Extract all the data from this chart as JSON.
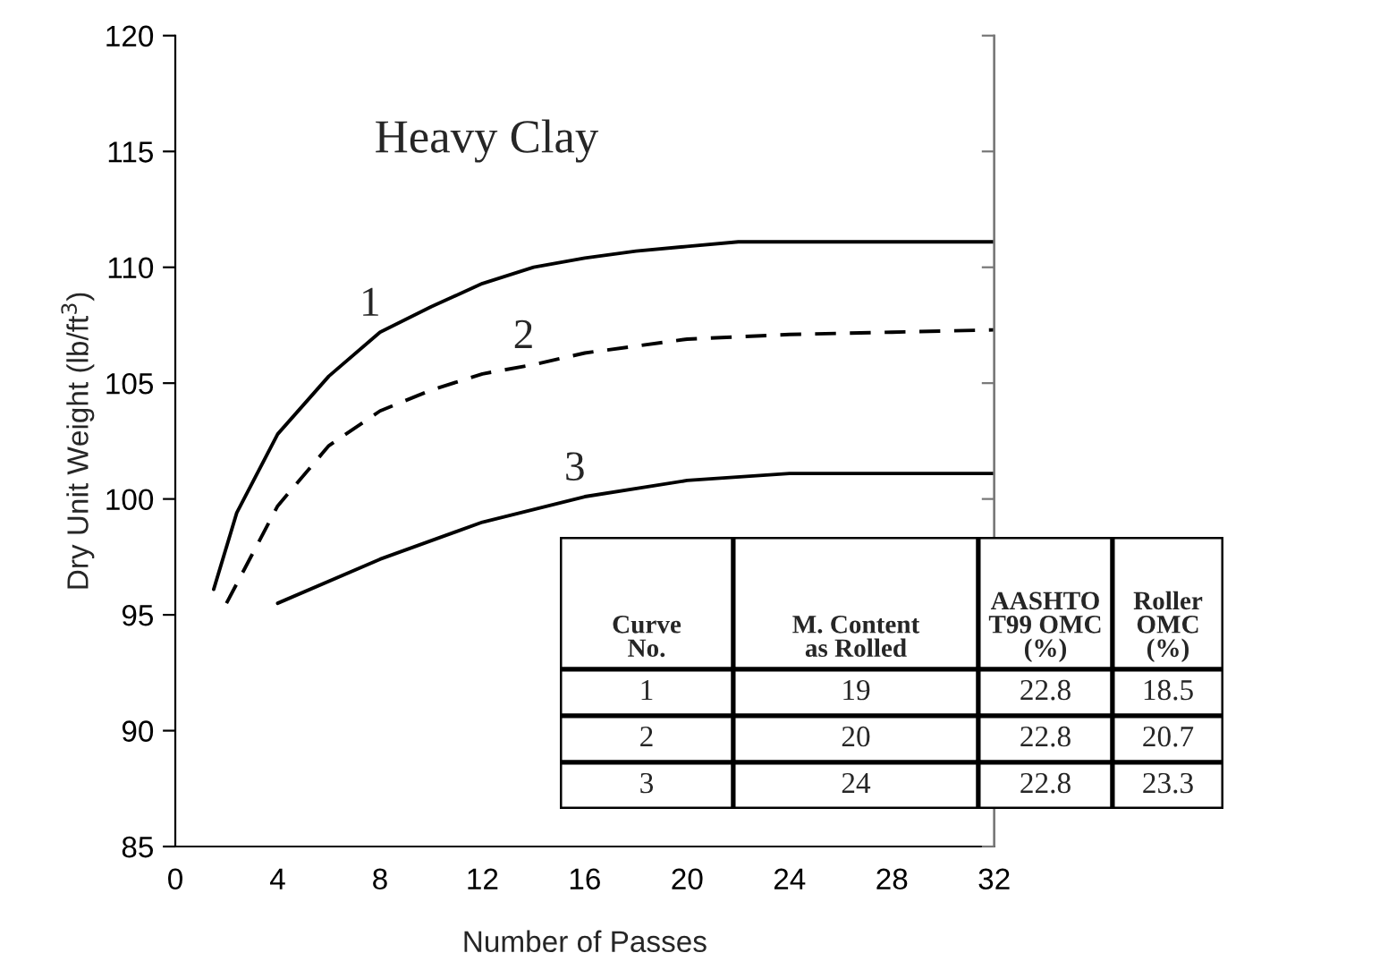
{
  "chart_data": {
    "type": "line",
    "title": "Heavy Clay",
    "xlabel": "Number of Passes",
    "ylabel": "Dry Unit Weight (lb/ft$^{3}$)",
    "xlim": [
      0,
      32
    ],
    "xticks": [
      0,
      4,
      8,
      12,
      16,
      20,
      24,
      28,
      32
    ],
    "ylim": [
      85,
      120
    ],
    "yticks": [
      85,
      90,
      95,
      100,
      105,
      110,
      115,
      120
    ],
    "grid": false,
    "legend": false,
    "marker": "none",
    "series": [
      {
        "name": "1",
        "color": "#000000",
        "line_style": "solid",
        "x": [
          1.5,
          2.4,
          4,
          6,
          8,
          10,
          12,
          14,
          16,
          18,
          20,
          22,
          32
        ],
        "values": [
          96.1,
          99.4,
          102.8,
          105.3,
          107.2,
          108.3,
          109.3,
          110.0,
          110.4,
          110.7,
          110.9,
          111.1,
          111.1
        ]
      },
      {
        "name": "2",
        "color": "#000000",
        "line_style": "dashed",
        "x": [
          2,
          3,
          4,
          6,
          8,
          10,
          12,
          14,
          16,
          18,
          20,
          24,
          28,
          32
        ],
        "values": [
          95.5,
          97.6,
          99.7,
          102.3,
          103.8,
          104.7,
          105.4,
          105.8,
          106.3,
          106.6,
          106.9,
          107.1,
          107.2,
          107.3
        ]
      },
      {
        "name": "3",
        "color": "#000000",
        "line_style": "solid",
        "x": [
          4,
          8,
          12,
          16,
          20,
          24,
          32
        ],
        "values": [
          95.5,
          97.4,
          99.0,
          100.1,
          100.8,
          101.1,
          101.1
        ]
      }
    ],
    "annotations": [
      "Curve\nNo.",
      "M. Content\nas Rolled",
      "AASHTO\nT99 OMC\n(%)",
      "Roller\nOMC\n(%)",
      "1",
      "19",
      "22.8",
      "18.5",
      "2",
      "20",
      "22.8",
      "20.7",
      "3",
      "24",
      "22.8",
      "23.3"
    ]
  }
}
